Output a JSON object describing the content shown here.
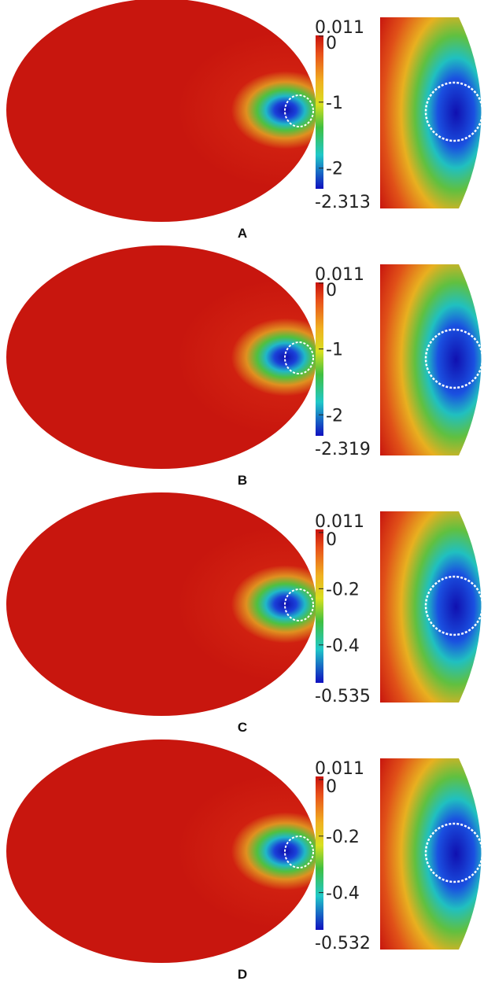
{
  "panels": [
    {
      "label": "A",
      "colorbar": {
        "max": 0.011,
        "min": -2.313,
        "ticks": [
          0,
          -1,
          -2
        ]
      }
    },
    {
      "label": "B",
      "colorbar": {
        "max": 0.011,
        "min": -2.319,
        "ticks": [
          0,
          -1,
          -2
        ]
      }
    },
    {
      "label": "C",
      "colorbar": {
        "max": 0.011,
        "min": -0.535,
        "ticks": [
          0,
          -0.2,
          -0.4
        ]
      }
    },
    {
      "label": "D",
      "colorbar": {
        "max": 0.011,
        "min": -0.532,
        "ticks": [
          0,
          -0.2,
          -0.4
        ]
      }
    }
  ]
}
